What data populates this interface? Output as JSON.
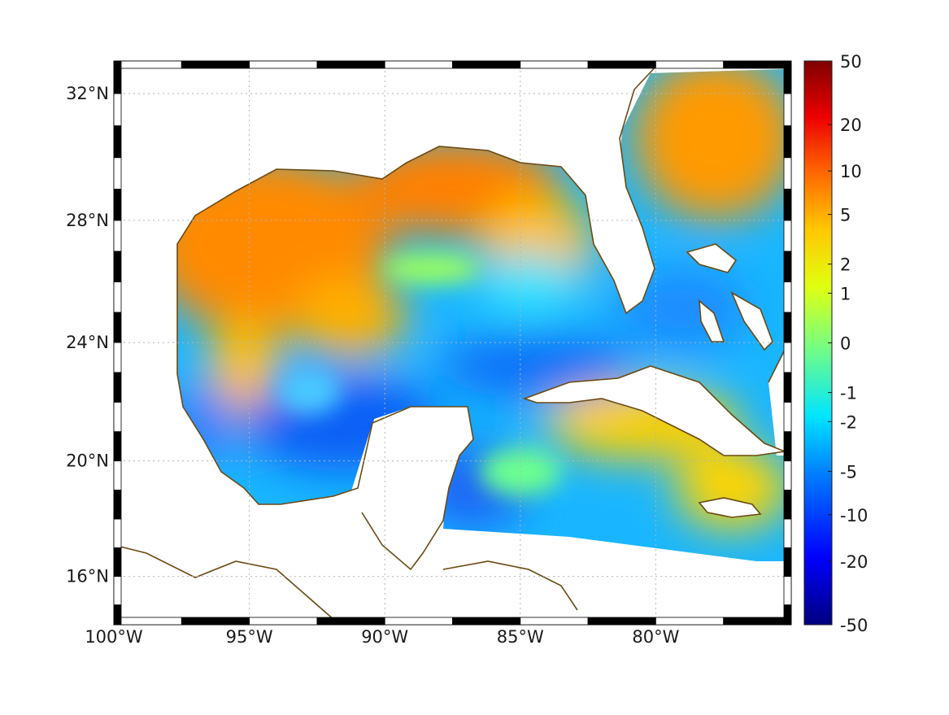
{
  "map": {
    "projection": "mercator",
    "lon_range": [
      -100,
      -75
    ],
    "lat_range": [
      14.3,
      33
    ],
    "coastline_color": "#6b4a12",
    "grid": true,
    "frame": "black-white alternating border",
    "lon_ticks": [
      {
        "value": -100,
        "label": "100°W"
      },
      {
        "value": -95,
        "label": "95°W"
      },
      {
        "value": -90,
        "label": "90°W"
      },
      {
        "value": -85,
        "label": "85°W"
      },
      {
        "value": -80,
        "label": "80°W"
      }
    ],
    "lat_ticks": [
      {
        "value": 16,
        "label": "16°N"
      },
      {
        "value": 20,
        "label": "20°N"
      },
      {
        "value": 24,
        "label": "24°N"
      },
      {
        "value": 28,
        "label": "28°N"
      },
      {
        "value": 32,
        "label": "32°N"
      }
    ]
  },
  "colorbar": {
    "colormap": "jet",
    "scale": "symmetric-log",
    "range": [
      -50,
      50
    ],
    "ticks": [
      {
        "value": 50,
        "label": "50"
      },
      {
        "value": 20,
        "label": "20"
      },
      {
        "value": 10,
        "label": "10"
      },
      {
        "value": 5,
        "label": "5"
      },
      {
        "value": 2,
        "label": "2"
      },
      {
        "value": 1,
        "label": "1"
      },
      {
        "value": 0,
        "label": "0"
      },
      {
        "value": -1,
        "label": "-1"
      },
      {
        "value": -2,
        "label": "-2"
      },
      {
        "value": -5,
        "label": "-5"
      },
      {
        "value": -10,
        "label": "-10"
      },
      {
        "value": -20,
        "label": "-20"
      },
      {
        "value": -50,
        "label": "-50"
      }
    ]
  },
  "field": {
    "description_regions": [
      {
        "name": "northern-gulf",
        "value": 5
      },
      {
        "name": "western-gulf-shelf",
        "value": 5
      },
      {
        "name": "central-gulf",
        "value": -2
      },
      {
        "name": "bay-of-campeche",
        "value": -5
      },
      {
        "name": "loop-current-area",
        "value": -4
      },
      {
        "name": "florida-west-shelf",
        "value": 3
      },
      {
        "name": "south-of-cuba",
        "value": 3
      },
      {
        "name": "caribbean-yucatan-basin",
        "value": -2
      },
      {
        "name": "atlantic-east-of-florida",
        "value": 4
      },
      {
        "name": "bahamas",
        "value": -3
      }
    ]
  }
}
